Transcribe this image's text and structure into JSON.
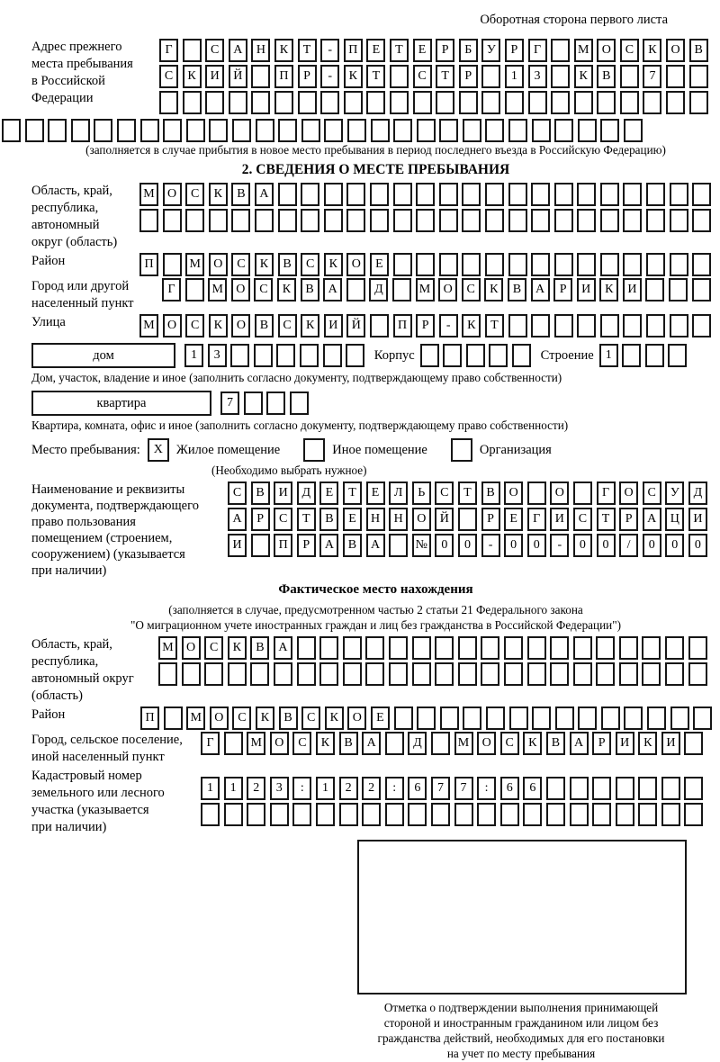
{
  "header": {
    "title": "Оборотная сторона первого листа"
  },
  "prev_address": {
    "label_lines": [
      "Адрес прежнего",
      "места пребывания",
      "в Российской",
      "Федерации"
    ],
    "rows": [
      [
        "Г",
        "",
        "С",
        "А",
        "Н",
        "К",
        "Т",
        "-",
        "П",
        "Е",
        "Т",
        "Е",
        "Р",
        "Б",
        "У",
        "Р",
        "Г",
        "",
        "М",
        "О",
        "С",
        "К",
        "О",
        "В"
      ],
      [
        "С",
        "К",
        "И",
        "Й",
        "",
        "П",
        "Р",
        "-",
        "К",
        "Т",
        "",
        "С",
        "Т",
        "Р",
        "",
        "1",
        "3",
        "",
        "К",
        "В",
        "",
        "7",
        "",
        ""
      ],
      [
        "",
        "",
        "",
        "",
        "",
        "",
        "",
        "",
        "",
        "",
        "",
        "",
        "",
        "",
        "",
        "",
        "",
        "",
        "",
        "",
        "",
        "",
        "",
        ""
      ],
      [
        "",
        "",
        "",
        "",
        "",
        "",
        "",
        "",
        "",
        "",
        "",
        "",
        "",
        "",
        "",
        "",
        "",
        "",
        "",
        "",
        "",
        "",
        "",
        "",
        "",
        "",
        "",
        ""
      ]
    ],
    "caption": "(заполняется в случае прибытия в новое место пребывания в период последнего въезда в Российскую Федерацию)"
  },
  "section2": {
    "title": "2. СВЕДЕНИЯ О МЕСТЕ ПРЕБЫВАНИЯ",
    "region": {
      "label_lines": [
        "Область, край,",
        "республика,",
        "автономный",
        "округ (область)"
      ],
      "rows": [
        [
          "М",
          "О",
          "С",
          "К",
          "В",
          "А",
          "",
          "",
          "",
          "",
          "",
          "",
          "",
          "",
          "",
          "",
          "",
          "",
          "",
          "",
          "",
          "",
          "",
          "",
          ""
        ],
        [
          "",
          "",
          "",
          "",
          "",
          "",
          "",
          "",
          "",
          "",
          "",
          "",
          "",
          "",
          "",
          "",
          "",
          "",
          "",
          "",
          "",
          "",
          "",
          "",
          ""
        ]
      ]
    },
    "district": {
      "label": "Район",
      "row": [
        "П",
        "",
        "М",
        "О",
        "С",
        "К",
        "В",
        "С",
        "К",
        "О",
        "Е",
        "",
        "",
        "",
        "",
        "",
        "",
        "",
        "",
        "",
        "",
        "",
        "",
        "",
        ""
      ]
    },
    "city": {
      "label_lines": [
        "Город или другой",
        "населенный пункт"
      ],
      "row": [
        "Г",
        "",
        "М",
        "О",
        "С",
        "К",
        "В",
        "А",
        "",
        "Д",
        "",
        "М",
        "О",
        "С",
        "К",
        "В",
        "А",
        "Р",
        "И",
        "К",
        "И",
        "",
        "",
        ""
      ]
    },
    "street": {
      "label": "Улица",
      "row": [
        "М",
        "О",
        "С",
        "К",
        "О",
        "В",
        "С",
        "К",
        "И",
        "Й",
        "",
        "П",
        "Р",
        "-",
        "К",
        "Т",
        "",
        "",
        "",
        "",
        "",
        "",
        "",
        "",
        ""
      ]
    },
    "house": {
      "box_label": "дом",
      "cells": [
        "1",
        "3",
        "",
        "",
        "",
        "",
        "",
        ""
      ],
      "korpus_label": "Корпус",
      "korpus_cells": [
        "",
        "",
        "",
        "",
        ""
      ],
      "stroenie_label": "Строение",
      "stroenie_cells": [
        "1",
        "",
        "",
        ""
      ]
    },
    "house_caption": "Дом, участок, владение и иное (заполнить согласно документу, подтверждающему право собственности)",
    "apartment": {
      "box_label": "квартира",
      "cells": [
        "7",
        "",
        "",
        ""
      ]
    },
    "apartment_caption": "Квартира, комната, офис и иное (заполнить согласно документу, подтверждающему право собственности)",
    "stay_type": {
      "label": "Место пребывания:",
      "options": [
        {
          "label": "Жилое помещение",
          "mark": "X"
        },
        {
          "label": "Иное помещение",
          "mark": ""
        },
        {
          "label": "Организация",
          "mark": ""
        }
      ],
      "note": "(Необходимо выбрать нужное)"
    },
    "document": {
      "label_lines": [
        "Наименование и реквизиты",
        "документа, подтверждающего",
        "право пользования",
        "помещением (строением,",
        "сооружением) (указывается",
        "при наличии)"
      ],
      "rows": [
        [
          "С",
          "В",
          "И",
          "Д",
          "Е",
          "Т",
          "Е",
          "Л",
          "Ь",
          "С",
          "Т",
          "В",
          "О",
          "",
          "О",
          "",
          "Г",
          "О",
          "С",
          "У",
          "Д"
        ],
        [
          "А",
          "Р",
          "С",
          "Т",
          "В",
          "Е",
          "Н",
          "Н",
          "О",
          "Й",
          "",
          "Р",
          "Е",
          "Г",
          "И",
          "С",
          "Т",
          "Р",
          "А",
          "Ц",
          "И"
        ],
        [
          "И",
          "",
          "П",
          "Р",
          "А",
          "В",
          "А",
          "",
          "№",
          "0",
          "0",
          "-",
          "0",
          "0",
          "-",
          "0",
          "0",
          "/",
          "0",
          "0",
          "0"
        ]
      ]
    }
  },
  "section3": {
    "title": "Фактическое место нахождения",
    "caption_lines": [
      "(заполняется в случае, предусмотренном частью 2 статьи 21 Федерального закона",
      "\"О миграционном учете иностранных граждан и лиц без гражданства в Российской Федерации\")"
    ],
    "region": {
      "label_lines": [
        "Область, край,",
        "республика,",
        "автономный округ",
        "(область)"
      ],
      "rows": [
        [
          "М",
          "О",
          "С",
          "К",
          "В",
          "А",
          "",
          "",
          "",
          "",
          "",
          "",
          "",
          "",
          "",
          "",
          "",
          "",
          "",
          "",
          "",
          "",
          "",
          ""
        ],
        [
          "",
          "",
          "",
          "",
          "",
          "",
          "",
          "",
          "",
          "",
          "",
          "",
          "",
          "",
          "",
          "",
          "",
          "",
          "",
          "",
          "",
          "",
          "",
          ""
        ]
      ]
    },
    "district": {
      "label": "Район",
      "row": [
        "П",
        "",
        "М",
        "О",
        "С",
        "К",
        "В",
        "С",
        "К",
        "О",
        "Е",
        "",
        "",
        "",
        "",
        "",
        "",
        "",
        "",
        "",
        "",
        "",
        "",
        "",
        ""
      ]
    },
    "city": {
      "label_lines": [
        "Город, сельское поселение,",
        "иной населенный пункт"
      ],
      "row": [
        "Г",
        "",
        "М",
        "О",
        "С",
        "К",
        "В",
        "А",
        "",
        "Д",
        "",
        "М",
        "О",
        "С",
        "К",
        "В",
        "А",
        "Р",
        "И",
        "К",
        "И",
        ""
      ]
    },
    "cadastral": {
      "label_lines": [
        "Кадастровый номер",
        "земельного или лесного",
        "участка (указывается",
        "при наличии)"
      ],
      "rows": [
        [
          "1",
          "1",
          "2",
          "3",
          ":",
          "1",
          "2",
          "2",
          ":",
          "6",
          "7",
          "7",
          ":",
          "6",
          "6",
          "",
          "",
          "",
          "",
          "",
          "",
          ""
        ],
        [
          "",
          "",
          "",
          "",
          "",
          "",
          "",
          "",
          "",
          "",
          "",
          "",
          "",
          "",
          "",
          "",
          "",
          "",
          "",
          "",
          "",
          ""
        ]
      ]
    },
    "stamp_caption_lines": [
      "Отметка о подтверждении выполнения принимающей",
      "стороной и иностранным гражданином или лицом без",
      "гражданства действий, необходимых для его постановки",
      "на учет по месту пребывания"
    ]
  }
}
